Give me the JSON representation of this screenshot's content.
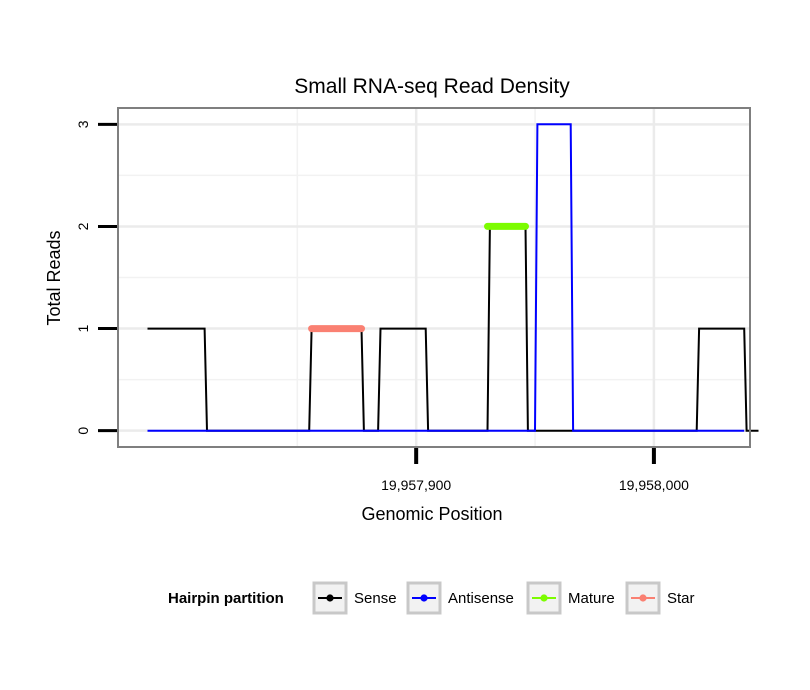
{
  "chart_data": {
    "type": "line",
    "title": "Small RNA-seq Read Density",
    "xlabel": "Genomic Position",
    "ylabel": "Total Reads",
    "xlim": [
      19957775,
      19958040
    ],
    "ylim": [
      -0.15,
      3.15
    ],
    "x_ticks": [
      {
        "value": 19957900,
        "label": "19,957,900"
      },
      {
        "value": 19958000,
        "label": "19,958,000"
      }
    ],
    "y_ticks": [
      {
        "value": 0,
        "label": "0"
      },
      {
        "value": 1,
        "label": "1"
      },
      {
        "value": 2,
        "label": "2"
      },
      {
        "value": 3,
        "label": "3"
      }
    ],
    "x_minor_grid": [
      19957850,
      19957950,
      19958050
    ],
    "y_minor_grid": [
      0.5,
      1.5,
      2.5
    ],
    "series": [
      {
        "name": "Sense",
        "color": "#000000",
        "points": [
          [
            19957787,
            1
          ],
          [
            19957811,
            1
          ],
          [
            19957812,
            0
          ],
          [
            19957855,
            0
          ],
          [
            19957856,
            1
          ],
          [
            19957877,
            1
          ],
          [
            19957878,
            0
          ],
          [
            19957884,
            0
          ],
          [
            19957885,
            1
          ],
          [
            19957904,
            1
          ],
          [
            19957905,
            0
          ],
          [
            19957930,
            0
          ],
          [
            19957931,
            2
          ],
          [
            19957946,
            2
          ],
          [
            19957947,
            0
          ],
          [
            19958018,
            0
          ],
          [
            19958019,
            1
          ],
          [
            19958038,
            1
          ],
          [
            19958039,
            0
          ],
          [
            19958044,
            0
          ]
        ]
      },
      {
        "name": "Antisense",
        "color": "#0000ff",
        "points": [
          [
            19957787,
            0
          ],
          [
            19957950,
            0
          ],
          [
            19957951,
            3
          ],
          [
            19957965,
            3
          ],
          [
            19957966,
            0
          ],
          [
            19958038,
            0
          ]
        ]
      },
      {
        "name": "Mature",
        "color": "#7cfc00",
        "points": [
          [
            19957930,
            2
          ],
          [
            19957946,
            2
          ]
        ]
      },
      {
        "name": "Star",
        "color": "#fa8072",
        "points": [
          [
            19957856,
            1
          ],
          [
            19957877,
            1
          ]
        ]
      }
    ],
    "legend": {
      "title": "Hairpin partition",
      "placement": "bottom",
      "entries": [
        "Sense",
        "Antisense",
        "Mature",
        "Star"
      ]
    }
  }
}
